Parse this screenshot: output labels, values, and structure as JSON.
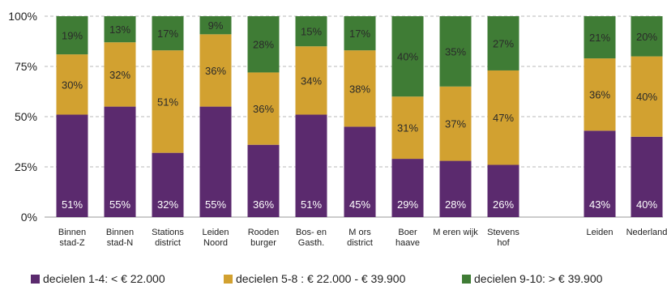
{
  "chart_data": {
    "type": "bar",
    "stacked": true,
    "percent": true,
    "categories": [
      [
        "Binnen",
        "stad-Z"
      ],
      [
        "Binnen",
        "stad-N"
      ],
      [
        "Stations",
        "district"
      ],
      [
        "Leiden",
        "Noord"
      ],
      [
        "Rooden",
        "burger"
      ],
      [
        "Bos- en",
        "Gasth."
      ],
      [
        "M ors",
        "district"
      ],
      [
        "Boer",
        "haave"
      ],
      [
        "M eren wijk",
        ""
      ],
      [
        "Stevens",
        "hof"
      ],
      [
        "Leiden",
        ""
      ],
      [
        "Nederland",
        ""
      ]
    ],
    "series": [
      {
        "name": "decielen 1-4: < € 22.000",
        "color": "#5b2a6e",
        "values": [
          51,
          55,
          32,
          55,
          36,
          51,
          45,
          29,
          28,
          26,
          43,
          40
        ]
      },
      {
        "name": "decielen 5-8 : € 22.000 - € 39.900",
        "color": "#d2a130",
        "values": [
          30,
          32,
          51,
          36,
          36,
          34,
          38,
          31,
          37,
          47,
          36,
          40
        ]
      },
      {
        "name": "decielen 9-10: > € 39.900",
        "color": "#3f7c35",
        "values": [
          19,
          13,
          17,
          9,
          28,
          15,
          17,
          40,
          35,
          27,
          21,
          20
        ]
      }
    ],
    "value_labels": [
      [
        "51%",
        "55%",
        "32%",
        "55%",
        "36%",
        "51%",
        "45%",
        "29%",
        "28%",
        "26%",
        "43%",
        "40%"
      ],
      [
        "30%",
        "32%",
        "51%",
        "36%",
        "36%",
        "34%",
        "38%",
        "31%",
        "37%",
        "47%",
        "36%",
        "40%"
      ],
      [
        "19%",
        "13%",
        "17%",
        "9%",
        "28%",
        "15%",
        "17%",
        "40%",
        "35%",
        "27%",
        "21%",
        "20%"
      ]
    ],
    "yticks": [
      {
        "value": 0,
        "label": "0%"
      },
      {
        "value": 25,
        "label": "25%"
      },
      {
        "value": 50,
        "label": "50%"
      },
      {
        "value": 75,
        "label": "75%"
      },
      {
        "value": 100,
        "label": "100%"
      }
    ],
    "ylim": [
      0,
      100
    ],
    "grid": "dashed-horizontal",
    "legend_position": "bottom"
  }
}
